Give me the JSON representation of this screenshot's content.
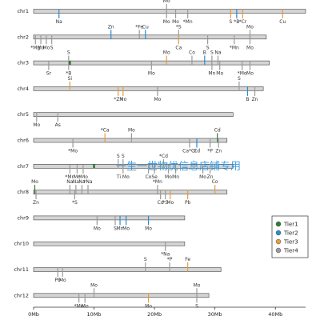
{
  "watermark": "一生一世物优信息店铺专用",
  "colors": {
    "Tier1": "#2e7d32",
    "Tier2": "#2a8bd0",
    "Tier3": "#e59c3b",
    "Tier4": "#9a9a9a",
    "bar_fill": "#d4d4d4",
    "bar_stroke": "#444444"
  },
  "legend": [
    "Tier1",
    "Tier2",
    "Tier3",
    "Tier4"
  ],
  "axis": {
    "ticks": [
      "0Mb",
      "10Mb",
      "20Mb",
      "30Mb",
      "40Mb"
    ],
    "tick_values": [
      0,
      10,
      20,
      30,
      40
    ],
    "max": 45
  },
  "chromosomes": [
    {
      "name": "chr1",
      "length": 45.0,
      "markers": [
        {
          "pos": 4.2,
          "label": "Na",
          "side": "below",
          "tier": "Tier2"
        },
        {
          "pos": 22.0,
          "label": "Mo",
          "side": "above",
          "tier": "Tier4"
        },
        {
          "pos": 22.0,
          "label": "Mo",
          "side": "below",
          "tier": "Tier4"
        },
        {
          "pos": 23.5,
          "label": "Mo",
          "side": "below",
          "tier": "Tier4"
        },
        {
          "pos": 25.5,
          "label": "*Mn",
          "side": "below",
          "tier": "Tier4"
        },
        {
          "pos": 32.6,
          "label": "S",
          "side": "below",
          "tier": "Tier3"
        },
        {
          "pos": 33.6,
          "label": "*B",
          "side": "below",
          "tier": "Tier2"
        },
        {
          "pos": 34.6,
          "label": "*Cr",
          "side": "below",
          "tier": "Tier3"
        },
        {
          "pos": 41.2,
          "label": "Cu",
          "side": "below",
          "tier": "Tier3"
        }
      ]
    },
    {
      "name": "chr2",
      "length": 38.5,
      "markers": [
        {
          "pos": 0.3,
          "label": "*Mg",
          "side": "below",
          "tier": "Tier4"
        },
        {
          "pos": 1.2,
          "label": "Mo",
          "side": "below",
          "tier": "Tier4"
        },
        {
          "pos": 2.1,
          "label": "Mo",
          "side": "below",
          "tier": "Tier4"
        },
        {
          "pos": 3.0,
          "label": "S",
          "side": "below",
          "tier": "Tier4"
        },
        {
          "pos": 12.8,
          "label": "Zn",
          "side": "above",
          "tier": "Tier2"
        },
        {
          "pos": 17.5,
          "label": "*Fe",
          "side": "above",
          "tier": "Tier4"
        },
        {
          "pos": 18.5,
          "label": "Cu",
          "side": "above",
          "tier": "Tier2"
        },
        {
          "pos": 24.0,
          "label": "*S",
          "side": "above",
          "tier": "Tier4"
        },
        {
          "pos": 24.0,
          "label": "Ca",
          "side": "below",
          "tier": "Tier3"
        },
        {
          "pos": 28.8,
          "label": "S",
          "side": "below",
          "tier": "Tier4"
        },
        {
          "pos": 33.2,
          "label": "*Mn",
          "side": "below",
          "tier": "Tier4"
        },
        {
          "pos": 35.8,
          "label": "Mo",
          "side": "above",
          "tier": "Tier4"
        },
        {
          "pos": 35.8,
          "label": "Mo",
          "side": "below",
          "tier": "Tier4"
        }
      ]
    },
    {
      "name": "chr3",
      "length": 39.0,
      "markers": [
        {
          "pos": 2.5,
          "label": "Sr",
          "side": "below",
          "tier": "Tier4"
        },
        {
          "pos": 5.8,
          "label": "S",
          "side": "above",
          "tier": "Tier4"
        },
        {
          "pos": 5.8,
          "label": "*B",
          "side": "below",
          "tier": "Tier4"
        },
        {
          "pos": 6.0,
          "label": "",
          "side": "none",
          "tier": "Tier1"
        },
        {
          "pos": 19.5,
          "label": "Mo",
          "side": "below",
          "tier": "Tier4"
        },
        {
          "pos": 22.0,
          "label": "Mo",
          "side": "above",
          "tier": "Tier3"
        },
        {
          "pos": 26.2,
          "label": "Co",
          "side": "above",
          "tier": "Tier4"
        },
        {
          "pos": 28.3,
          "label": "B",
          "side": "above",
          "tier": "Tier2"
        },
        {
          "pos": 29.5,
          "label": "S",
          "side": "above",
          "tier": "Tier4"
        },
        {
          "pos": 30.5,
          "label": "Na",
          "side": "above",
          "tier": "Tier4"
        },
        {
          "pos": 29.5,
          "label": "Mn",
          "side": "below",
          "tier": "Tier4"
        },
        {
          "pos": 30.8,
          "label": "Mo",
          "side": "below",
          "tier": "Tier4"
        },
        {
          "pos": 34.5,
          "label": "*Mo",
          "side": "below",
          "tier": "Tier4"
        },
        {
          "pos": 35.8,
          "label": "Mo",
          "side": "below",
          "tier": "Tier4"
        }
      ]
    },
    {
      "name": "chr4",
      "length": 38.0,
      "markers": [
        {
          "pos": 6.0,
          "label": "Si",
          "side": "above",
          "tier": "Tier3"
        },
        {
          "pos": 14.0,
          "label": "*Zn",
          "side": "below",
          "tier": "Tier3"
        },
        {
          "pos": 14.8,
          "label": "Mo",
          "side": "below",
          "tier": "Tier3"
        },
        {
          "pos": 20.5,
          "label": "Mo",
          "side": "below",
          "tier": "Tier4"
        },
        {
          "pos": 34.0,
          "label": "S",
          "side": "above",
          "tier": "Tier4"
        },
        {
          "pos": 35.4,
          "label": "B",
          "side": "below",
          "tier": "Tier2"
        },
        {
          "pos": 36.6,
          "label": "Zn",
          "side": "below",
          "tier": "Tier4"
        }
      ]
    },
    {
      "name": "chr5",
      "length": 33.0,
      "markers": [
        {
          "pos": 0.5,
          "label": "Mo",
          "side": "below",
          "tier": "Tier4"
        },
        {
          "pos": 4.0,
          "label": "As",
          "side": "below",
          "tier": "Tier4"
        }
      ]
    },
    {
      "name": "chr6",
      "length": 32.0,
      "markers": [
        {
          "pos": 6.5,
          "label": "*Mo",
          "side": "below",
          "tier": "Tier4"
        },
        {
          "pos": 11.8,
          "label": "*Ca",
          "side": "above",
          "tier": "Tier3"
        },
        {
          "pos": 16.2,
          "label": "Mo",
          "side": "above",
          "tier": "Tier4"
        },
        {
          "pos": 25.8,
          "label": "Ca*Cr",
          "side": "below",
          "tier": "Tier4"
        },
        {
          "pos": 27.0,
          "label": "Cd",
          "side": "below",
          "tier": "Tier2"
        },
        {
          "pos": 29.2,
          "label": "*P",
          "side": "below",
          "tier": "Tier4"
        },
        {
          "pos": 30.4,
          "label": "Cd",
          "side": "above",
          "tier": "Tier1"
        },
        {
          "pos": 30.6,
          "label": "Zn",
          "side": "below",
          "tier": "Tier4"
        }
      ]
    },
    {
      "name": "chr7",
      "length": 33.0,
      "markers": [
        {
          "pos": 6.0,
          "label": "*Mn",
          "side": "below",
          "tier": "Tier4"
        },
        {
          "pos": 7.2,
          "label": "Mo",
          "side": "below",
          "tier": "Tier4"
        },
        {
          "pos": 8.2,
          "label": "*Mo",
          "side": "below",
          "tier": "Tier4"
        },
        {
          "pos": 10.0,
          "label": "",
          "side": "none",
          "tier": "Tier1"
        },
        {
          "pos": 14.0,
          "label": "S",
          "side": "above",
          "tier": "Tier4"
        },
        {
          "pos": 14.8,
          "label": "S",
          "side": "above",
          "tier": "Tier4"
        },
        {
          "pos": 14.8,
          "label": "Ti Mo",
          "side": "below",
          "tier": "Tier4"
        },
        {
          "pos": 19.0,
          "label": "Co",
          "side": "below",
          "tier": "Tier4"
        },
        {
          "pos": 20.0,
          "label": "Se",
          "side": "below",
          "tier": "Tier4"
        },
        {
          "pos": 21.5,
          "label": "*Cd",
          "side": "above",
          "tier": "Tier3"
        },
        {
          "pos": 22.3,
          "label": "Mo",
          "side": "below",
          "tier": "Tier4"
        },
        {
          "pos": 23.5,
          "label": "Mn",
          "side": "below",
          "tier": "Tier4"
        },
        {
          "pos": 28.0,
          "label": "Mo",
          "side": "below",
          "tier": "Tier4"
        },
        {
          "pos": 29.2,
          "label": "Zn",
          "side": "below",
          "tier": "Tier4"
        }
      ]
    },
    {
      "name": "chr8",
      "length": 32.0,
      "markers": [
        {
          "pos": 0.2,
          "label": "Mo",
          "side": "above",
          "tier": "Tier1"
        },
        {
          "pos": 0.4,
          "label": "Zn",
          "side": "below",
          "tier": "Tier4"
        },
        {
          "pos": 6.0,
          "label": "Na",
          "side": "above",
          "tier": "Tier4"
        },
        {
          "pos": 7.0,
          "label": "Na",
          "side": "above",
          "tier": "Tier4"
        },
        {
          "pos": 8.0,
          "label": "Na",
          "side": "above",
          "tier": "Tier4"
        },
        {
          "pos": 9.0,
          "label": "*Na",
          "side": "above",
          "tier": "Tier4"
        },
        {
          "pos": 6.8,
          "label": "*S",
          "side": "below",
          "tier": "Tier4"
        },
        {
          "pos": 20.5,
          "label": "*Mn",
          "side": "above",
          "tier": "Tier4"
        },
        {
          "pos": 21.0,
          "label": "Cd",
          "side": "below",
          "tier": "Tier4"
        },
        {
          "pos": 21.8,
          "label": "*S",
          "side": "below",
          "tier": "Tier4"
        },
        {
          "pos": 22.6,
          "label": "Mo",
          "side": "below",
          "tier": "Tier3"
        },
        {
          "pos": 25.5,
          "label": "Pb",
          "side": "below",
          "tier": "Tier3"
        },
        {
          "pos": 30.0,
          "label": "Co",
          "side": "above",
          "tier": "Tier3"
        }
      ]
    },
    {
      "name": "chr9",
      "length": 25.0,
      "markers": [
        {
          "pos": 10.5,
          "label": "Mo",
          "side": "below",
          "tier": "Tier4"
        },
        {
          "pos": 13.5,
          "label": "S",
          "side": "below",
          "tier": "Tier4"
        },
        {
          "pos": 14.3,
          "label": "Mn",
          "side": "below",
          "tier": "Tier2"
        },
        {
          "pos": 15.3,
          "label": "Mo",
          "side": "below",
          "tier": "Tier2"
        },
        {
          "pos": 19.0,
          "label": "Mo",
          "side": "below",
          "tier": "Tier2"
        }
      ]
    },
    {
      "name": "chr10",
      "length": 25.0,
      "markers": [
        {
          "pos": 21.8,
          "label": "*Na",
          "side": "below",
          "tier": "Tier4"
        }
      ]
    },
    {
      "name": "chr11",
      "length": 31.0,
      "markers": [
        {
          "pos": 4.0,
          "label": "Pb",
          "side": "below",
          "tier": "Tier4"
        },
        {
          "pos": 4.8,
          "label": "Mo",
          "side": "below",
          "tier": "Tier4"
        },
        {
          "pos": 18.5,
          "label": "S",
          "side": "above",
          "tier": "Tier4"
        },
        {
          "pos": 22.5,
          "label": "*P",
          "side": "above",
          "tier": "Tier4"
        },
        {
          "pos": 25.5,
          "label": "Fe",
          "side": "above",
          "tier": "Tier3"
        }
      ]
    },
    {
      "name": "chr12",
      "length": 29.0,
      "markers": [
        {
          "pos": 7.5,
          "label": "*Mn",
          "side": "below",
          "tier": "Tier4"
        },
        {
          "pos": 8.5,
          "label": "Mo",
          "side": "below",
          "tier": "Tier4"
        },
        {
          "pos": 10.0,
          "label": "Mo",
          "side": "above",
          "tier": "Tier4"
        },
        {
          "pos": 19.0,
          "label": "Mo",
          "side": "below",
          "tier": "Tier3"
        },
        {
          "pos": 27.0,
          "label": "Mo",
          "side": "above",
          "tier": "Tier4"
        },
        {
          "pos": 27.0,
          "label": "S",
          "side": "below",
          "tier": "Tier4"
        }
      ]
    }
  ]
}
